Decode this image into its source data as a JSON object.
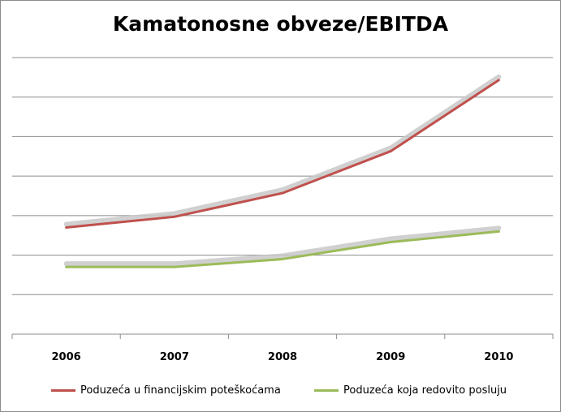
{
  "chart_data": {
    "type": "line",
    "title": "Kamatonosne obveze/EBITDA",
    "xlabel": "",
    "ylabel": "",
    "categories": [
      "2006",
      "2007",
      "2008",
      "2009",
      "2010"
    ],
    "series": [
      {
        "name": "Poduzeća u financijskim poteškoćama",
        "values": [
          2.7,
          2.97,
          3.57,
          4.63,
          6.43
        ],
        "color": "#c0504d"
      },
      {
        "name": "Poduzeća koja redovito posluju",
        "values": [
          1.7,
          1.7,
          1.9,
          2.33,
          2.6
        ],
        "color": "#9bbb59"
      }
    ],
    "ylim": [
      0,
      7
    ],
    "y_tick_labels": "none",
    "grid": "horizontal",
    "legend_position": "bottom"
  }
}
